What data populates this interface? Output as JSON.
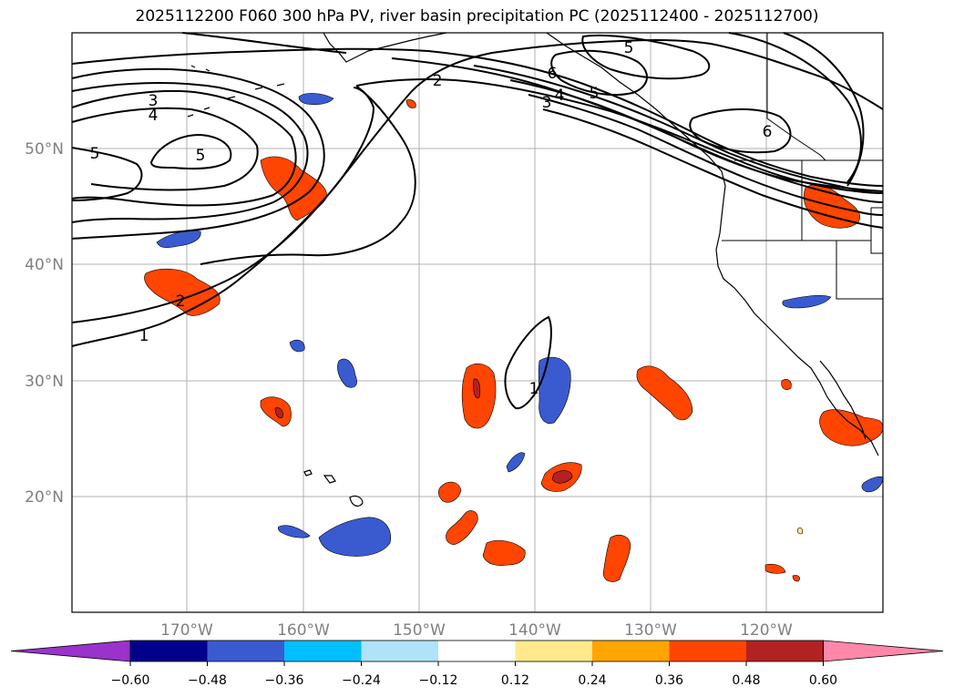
{
  "title": "2025112200 F060 300 hPa PV, river basin precipitation PC (2025112400 - 2025112700)",
  "lat_labels": [
    "50°N",
    "40°N",
    "30°N",
    "20°N"
  ],
  "lon_labels": [
    "170°W",
    "160°W",
    "150°W",
    "140°W",
    "130°W",
    "120°W"
  ],
  "contour_levels": [
    "1",
    "2",
    "3",
    "4",
    "5",
    "6"
  ],
  "colorbar": {
    "ticks": [
      "−0.60",
      "−0.48",
      "−0.36",
      "−0.24",
      "−0.12",
      "0.12",
      "0.24",
      "0.36",
      "0.48",
      "0.60"
    ],
    "colors": [
      "#9933cc",
      "#00008b",
      "#3a5bd0",
      "#00bfff",
      "#aee3fa",
      "#ffffff",
      "#ffe98a",
      "#ffa500",
      "#ff4500",
      "#b22222",
      "#ff88aa"
    ]
  },
  "map": {
    "lat_range": [
      10,
      60
    ],
    "lon_range": [
      -180,
      -110
    ],
    "land_color": "#ffffff",
    "contour_color": "#000000",
    "grid_color": "#b0b0b0"
  }
}
